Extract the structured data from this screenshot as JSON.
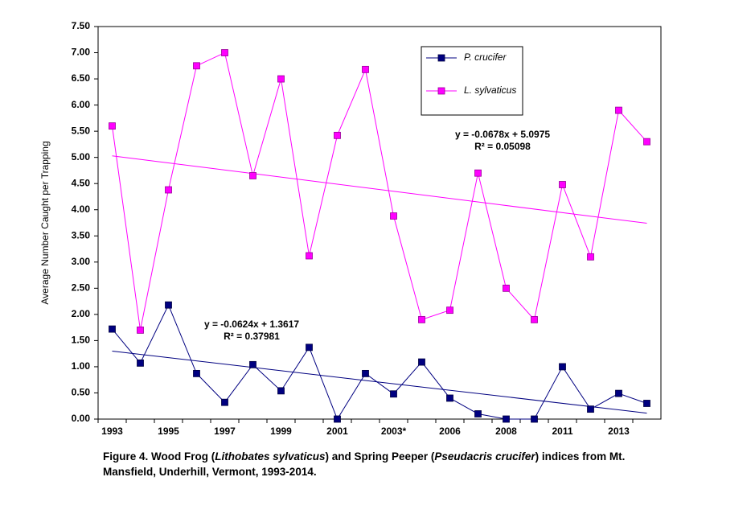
{
  "chart_data": {
    "type": "line",
    "y_label": "Average Number Caught per Trapping",
    "categories": [
      "1993",
      null,
      "1995",
      null,
      "1997",
      null,
      "1999",
      null,
      "2001",
      null,
      "2003*",
      null,
      "2006",
      null,
      "2008",
      null,
      "2011",
      null,
      "2013",
      null
    ],
    "series": [
      {
        "name": "P. crucifer",
        "color": "#000080",
        "values": [
          1.72,
          1.07,
          2.18,
          0.87,
          0.32,
          1.04,
          0.54,
          1.37,
          0.0,
          0.87,
          0.48,
          1.09,
          0.4,
          0.1,
          0.0,
          0.0,
          1.0,
          0.19,
          0.49,
          0.3
        ],
        "trend": {
          "slope": -0.0624,
          "intercept": 1.3617,
          "equation": "y = -0.0624x + 1.3617",
          "r2": "R² = 0.37981"
        }
      },
      {
        "name": "L. sylvaticus",
        "color": "#ff00ff",
        "values": [
          5.6,
          1.7,
          4.38,
          6.75,
          7.0,
          4.65,
          6.5,
          3.12,
          5.42,
          6.68,
          3.88,
          1.9,
          2.08,
          4.7,
          2.5,
          1.9,
          4.48,
          3.1,
          5.9,
          5.3
        ],
        "trend": {
          "slope": -0.0678,
          "intercept": 5.0975,
          "equation": "y = -0.0678x + 5.0975",
          "r2": "R² = 0.05098"
        }
      }
    ],
    "ylim": [
      0,
      7.5
    ],
    "yticks": [
      {
        "value": 0,
        "label": "0.00"
      },
      {
        "value": 0.5,
        "label": "0.50"
      },
      {
        "value": 1,
        "label": "1.00"
      },
      {
        "value": 1.5,
        "label": "1.50"
      },
      {
        "value": 2,
        "label": "2.00"
      },
      {
        "value": 2.5,
        "label": "2.50"
      },
      {
        "value": 3,
        "label": "3.00"
      },
      {
        "value": 3.5,
        "label": "3.50"
      },
      {
        "value": 4,
        "label": "4.00"
      },
      {
        "value": 4.5,
        "label": "4.50"
      },
      {
        "value": 5,
        "label": "5.00"
      },
      {
        "value": 5.5,
        "label": "5.50"
      },
      {
        "value": 6,
        "label": "6.00"
      },
      {
        "value": 6.5,
        "label": "6.50"
      },
      {
        "value": 7,
        "label": "7.00"
      },
      {
        "value": 7.5,
        "label": "7.50"
      }
    ],
    "grid": false,
    "caption": [
      [
        "Figure 4.  Wood Frog (",
        "Lithobates sylvaticus",
        ") and Spring Peeper (",
        "Pseudacris crucifer",
        ") indices from Mt."
      ],
      [
        "Mansfield, Underhill, Vermont, 1993-2014."
      ]
    ]
  }
}
